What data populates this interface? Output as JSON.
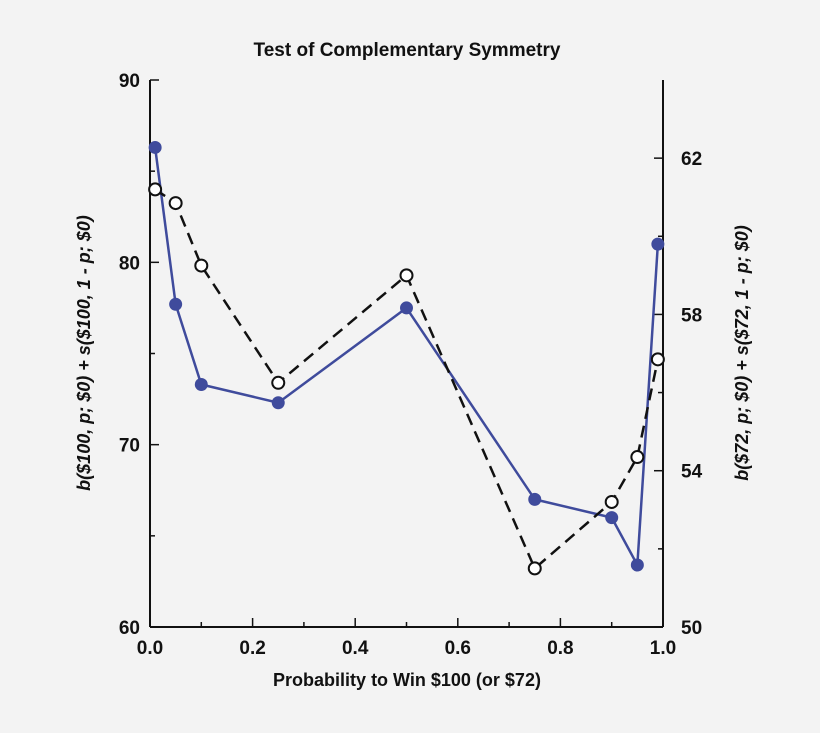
{
  "chart_data": {
    "type": "line",
    "title": "Test of Complementary Symmetry",
    "xlabel": "Probability to Win $100 (or $72)",
    "ylabel_left": "b($100, p; $0) + s($100, 1 - p; $0)",
    "ylabel_right": "b($72, p; $0) + s($72, 1 - p; $0)",
    "xlim": [
      0,
      1
    ],
    "ylim_left": [
      60,
      90
    ],
    "ylim_right": [
      50,
      64
    ],
    "x_ticks": [
      "0.0",
      "0.2",
      "0.4",
      "0.6",
      "0.8",
      "1.0"
    ],
    "y_ticks_left": [
      "60",
      "70",
      "80",
      "90"
    ],
    "y_ticks_right": [
      "50",
      "54",
      "58",
      "62"
    ],
    "grid": false,
    "series": [
      {
        "axis": "left",
        "style": "solid",
        "marker": "filled-circle",
        "color": "#3f4b9c",
        "x": [
          0.01,
          0.05,
          0.1,
          0.25,
          0.5,
          0.75,
          0.9,
          0.95,
          0.99
        ],
        "y": [
          86.3,
          77.7,
          73.3,
          72.3,
          77.5,
          67.0,
          66.0,
          63.4,
          81.0
        ]
      },
      {
        "axis": "right",
        "style": "dashed",
        "marker": "open-circle",
        "color": "#111111",
        "x": [
          0.01,
          0.05,
          0.1,
          0.25,
          0.5,
          0.75,
          0.9,
          0.95,
          0.99
        ],
        "y": [
          61.2,
          60.85,
          59.25,
          56.25,
          59.0,
          51.5,
          53.2,
          54.35,
          56.85
        ]
      }
    ]
  }
}
